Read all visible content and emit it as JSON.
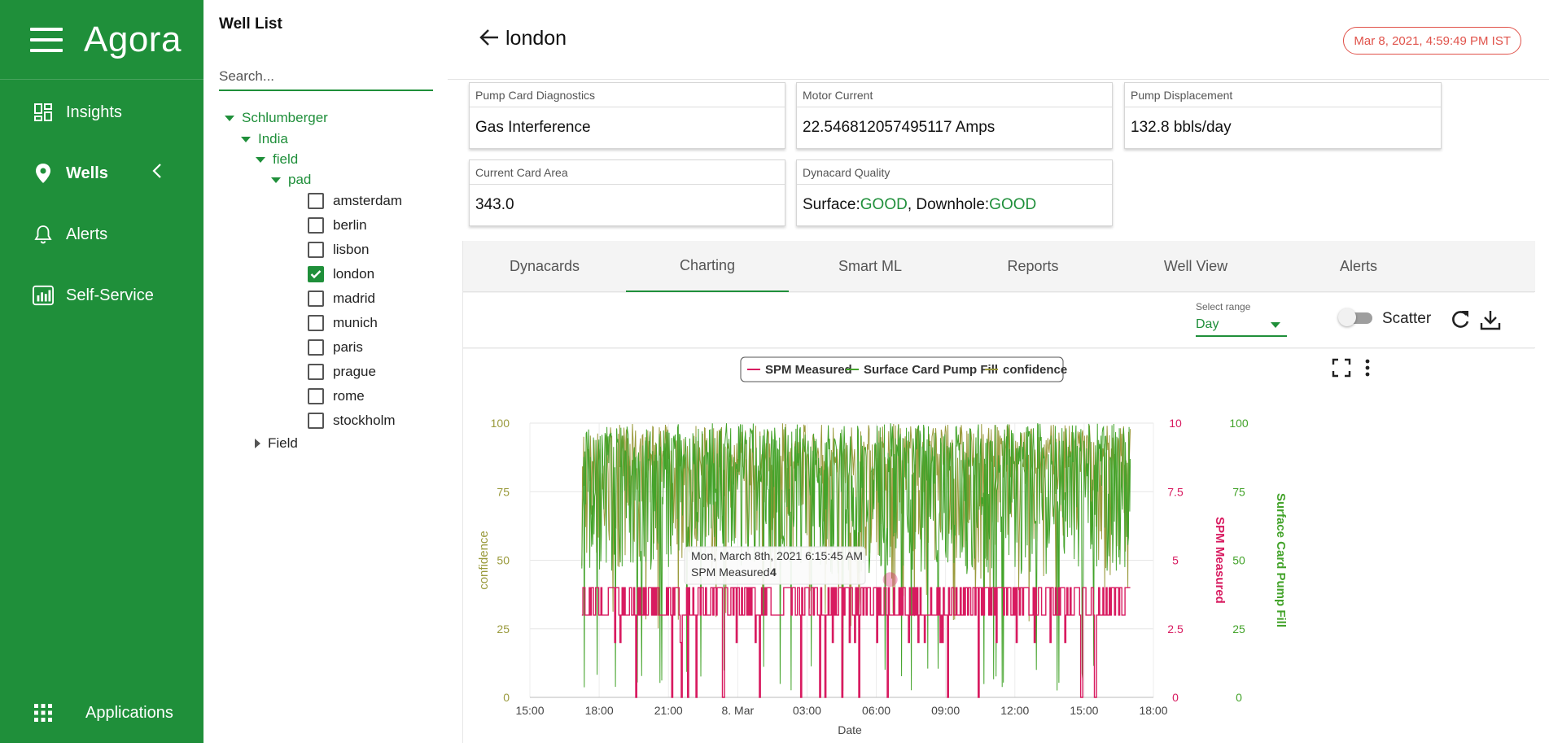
{
  "nav": {
    "brand": "Agora",
    "items": [
      {
        "label": "Insights",
        "icon": "dashboard-icon"
      },
      {
        "label": "Wells",
        "icon": "location-pin-icon"
      },
      {
        "label": "Alerts",
        "icon": "bell-icon"
      },
      {
        "label": "Self-Service",
        "icon": "chart-bar-icon"
      }
    ],
    "applications_label": "Applications"
  },
  "well_list": {
    "title": "Well List",
    "search_placeholder": "Search...",
    "tree": {
      "root": "Schlumberger",
      "country": "India",
      "field": "field",
      "pad": "pad",
      "wells": [
        {
          "name": "amsterdam",
          "checked": false
        },
        {
          "name": "berlin",
          "checked": false
        },
        {
          "name": "lisbon",
          "checked": false
        },
        {
          "name": "london",
          "checked": true
        },
        {
          "name": "madrid",
          "checked": false
        },
        {
          "name": "munich",
          "checked": false
        },
        {
          "name": "paris",
          "checked": false
        },
        {
          "name": "prague",
          "checked": false
        },
        {
          "name": "rome",
          "checked": false
        },
        {
          "name": "stockholm",
          "checked": false
        }
      ],
      "other_field": "Field"
    }
  },
  "header": {
    "title": "london",
    "datetime": "Mar 8, 2021, 4:59:49 PM IST"
  },
  "cards": {
    "pump_card_diagnostics": {
      "label": "Pump Card Diagnostics",
      "value": "Gas Interference"
    },
    "motor_current": {
      "label": "Motor Current",
      "value": "22.546812057495117 Amps"
    },
    "pump_displacement": {
      "label": "Pump Displacement",
      "value": "132.8 bbls/day"
    },
    "current_card_area": {
      "label": "Current Card Area",
      "value": "343.0"
    },
    "dynacard_quality": {
      "label": "Dynacard Quality",
      "surface_label": "Surface: ",
      "surface_value": "GOOD",
      "sep": ", Downhole: ",
      "downhole_value": "GOOD"
    }
  },
  "tabs": [
    {
      "label": "Dynacards",
      "active": false
    },
    {
      "label": "Charting",
      "active": true
    },
    {
      "label": "Smart ML",
      "active": false
    },
    {
      "label": "Reports",
      "active": false
    },
    {
      "label": "Well View",
      "active": false
    },
    {
      "label": "Alerts",
      "active": false
    }
  ],
  "toolbar": {
    "range_label": "Select range",
    "range_value": "Day",
    "scatter_label": "Scatter",
    "scatter_on": false
  },
  "colors": {
    "brand_green": "#1f8f3a",
    "spm": "#d81b60",
    "fill": "#43a32a",
    "confidence": "#9a9a3c"
  },
  "chart_data": {
    "type": "line",
    "xlabel": "Date",
    "x_ticks": [
      "15:00",
      "18:00",
      "21:00",
      "8. Mar",
      "03:00",
      "06:00",
      "09:00",
      "12:00",
      "15:00",
      "18:00"
    ],
    "x_data_range": [
      "17:15",
      "17:00"
    ],
    "axes": [
      {
        "id": "confidence",
        "label": "confidence",
        "side": "left",
        "range": [
          0,
          100
        ],
        "ticks": [
          "0",
          "25",
          "50",
          "75",
          "100"
        ]
      },
      {
        "id": "spm",
        "label": "SPM Measured",
        "side": "right",
        "range": [
          0,
          10
        ],
        "ticks": [
          "0",
          "2.5",
          "5",
          "7.5",
          "10"
        ]
      },
      {
        "id": "fill",
        "label": "Surface Card Pump Fill",
        "side": "right",
        "range": [
          0,
          100
        ],
        "ticks": [
          "0",
          "25",
          "50",
          "75",
          "100"
        ]
      }
    ],
    "series": [
      {
        "name": "SPM Measured",
        "axis": "spm",
        "typical_values": [
          3,
          4
        ]
      },
      {
        "name": "Surface Card Pump Fill",
        "axis": "fill",
        "typical_range": [
          0,
          100
        ]
      },
      {
        "name": "confidence",
        "axis": "confidence",
        "typical_range": [
          40,
          100
        ]
      }
    ],
    "tooltip": {
      "title": "Mon, March 8th, 2021 6:15:45 AM",
      "series": "SPM Measured",
      "value": "4"
    }
  }
}
